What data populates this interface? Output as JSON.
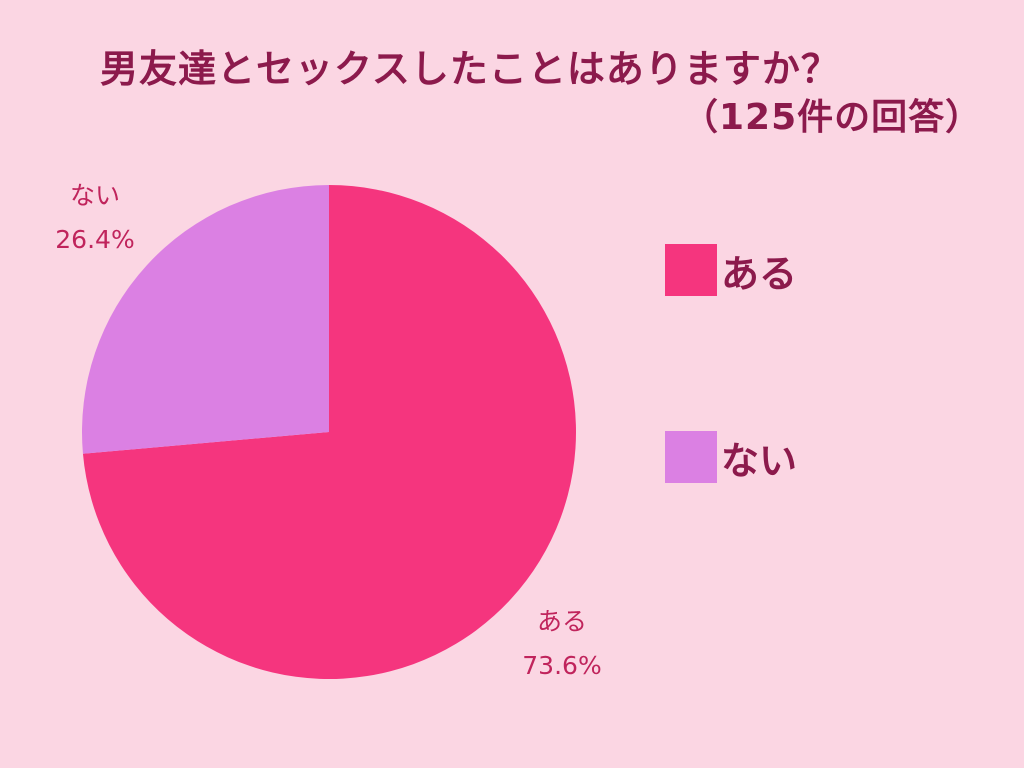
{
  "chart_data": {
    "type": "pie",
    "title": "男友達とセックスしたことはありますか？",
    "subtitle": "（125件の回答）",
    "slices": [
      {
        "label": "ある",
        "value": 73.6,
        "percent_label": "73.6%",
        "color": "#f5357e"
      },
      {
        "label": "ない",
        "value": 26.4,
        "percent_label": "26.4%",
        "color": "#db80e3"
      }
    ],
    "legend": [
      {
        "label": "ある",
        "color": "#f5357e"
      },
      {
        "label": "ない",
        "color": "#db80e3"
      }
    ],
    "legend_position": "right"
  },
  "colors": {
    "background": "#fbd6e3",
    "title": "#8c1a4c",
    "slice_label": "#c0245c"
  }
}
